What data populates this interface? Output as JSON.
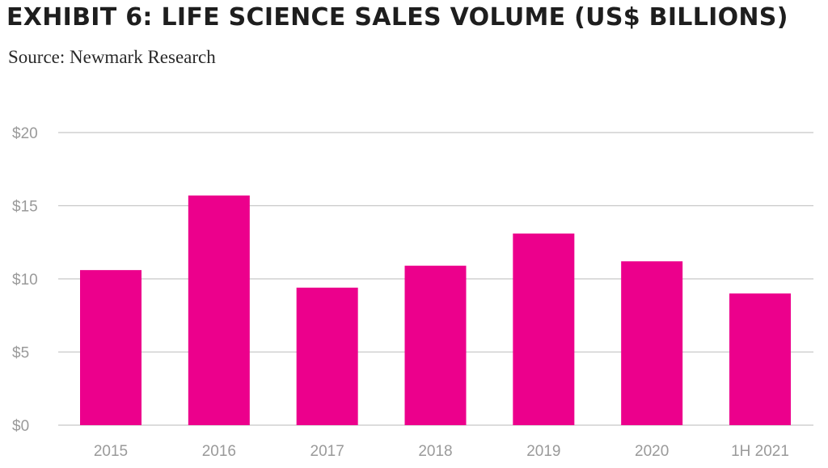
{
  "header": {
    "title": "EXHIBIT 6: LIFE SCIENCE SALES VOLUME (US$ BILLIONS)",
    "source": "Source: Newmark Research"
  },
  "colors": {
    "bar": "#ec008c",
    "grid": "#c8c8c8",
    "tick_text": "#9a9a9a"
  },
  "chart_data": {
    "type": "bar",
    "title": "EXHIBIT 6: LIFE SCIENCE SALES VOLUME (US$ BILLIONS)",
    "categories": [
      "2015",
      "2016",
      "2017",
      "2018",
      "2019",
      "2020",
      "1H 2021"
    ],
    "values": [
      10.6,
      15.7,
      9.4,
      10.9,
      13.1,
      11.2,
      9.0
    ],
    "y_ticks": [
      0,
      5,
      10,
      15,
      20
    ],
    "y_tick_labels": [
      "$0",
      "$5",
      "$10",
      "$15",
      "$20"
    ],
    "ylim": [
      0,
      20
    ],
    "xlabel": "",
    "ylabel": "",
    "grid": true,
    "legend": "none"
  }
}
